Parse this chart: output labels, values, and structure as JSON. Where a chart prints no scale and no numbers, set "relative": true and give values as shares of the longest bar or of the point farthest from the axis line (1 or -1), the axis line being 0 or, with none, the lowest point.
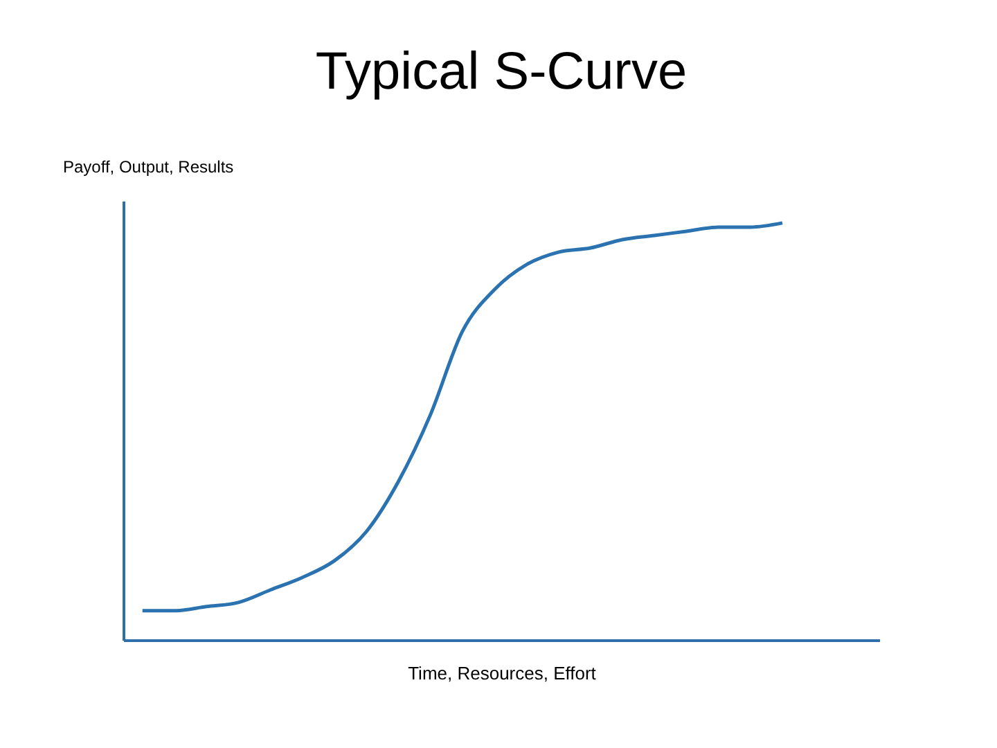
{
  "chart_data": {
    "type": "line",
    "title": "Typical S-Curve",
    "xlabel": "Time, Resources, Effort",
    "ylabel": "Payoff, Output, Results",
    "relative": true,
    "categories": [
      null,
      null,
      null,
      null,
      null,
      null,
      null,
      null,
      null,
      null,
      null,
      null,
      null,
      null,
      null,
      null,
      null,
      null,
      null,
      null,
      null
    ],
    "series": [
      {
        "color": "#2a72b0",
        "values": [
          0.07,
          0.07,
          0.08,
          0.09,
          0.12,
          0.15,
          0.19,
          0.26,
          0.38,
          0.54,
          0.74,
          0.84,
          0.9,
          0.93,
          0.94,
          0.96,
          0.97,
          0.98,
          0.99,
          0.99,
          1.0
        ]
      }
    ]
  }
}
